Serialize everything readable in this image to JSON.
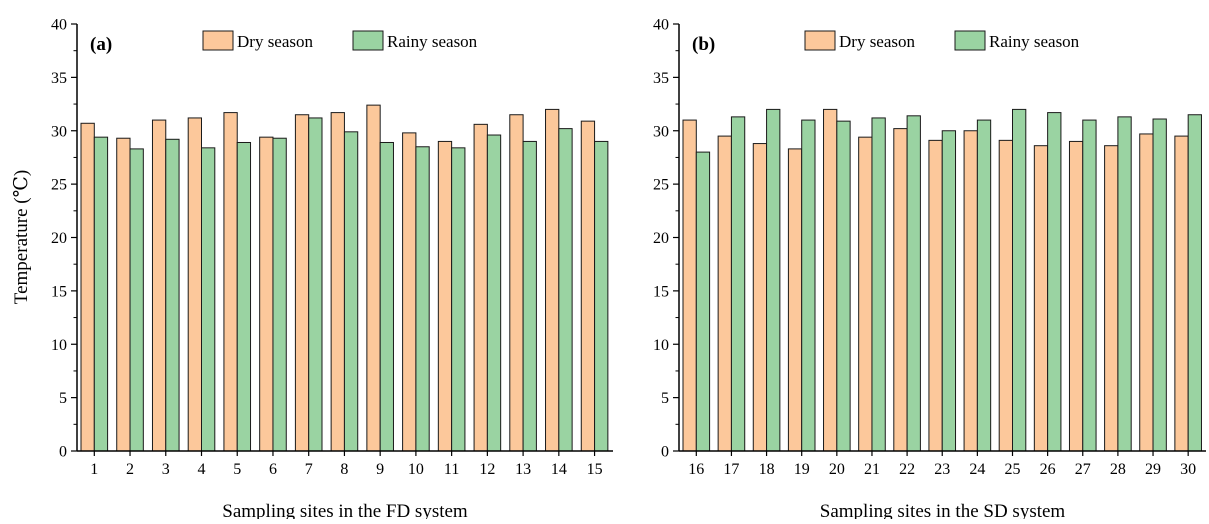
{
  "figure": {
    "y_axis_title": "Temperature (℃)"
  },
  "legend": {
    "dry_label": "Dry season",
    "rainy_label": "Rainy season"
  },
  "colors": {
    "dry": "#fcc89b",
    "rainy": "#9ad3a2",
    "edge": "#1a1a1a",
    "axis": "#000000"
  },
  "chart_data": [
    {
      "type": "bar",
      "panel_label": "(a)",
      "xlabel": "Sampling sites in the FD system",
      "ylabel": "Temperature (℃)",
      "categories": [
        "1",
        "2",
        "3",
        "4",
        "5",
        "6",
        "7",
        "8",
        "9",
        "10",
        "11",
        "12",
        "13",
        "14",
        "15"
      ],
      "series": [
        {
          "name": "Dry season",
          "values": [
            30.7,
            29.3,
            31.0,
            31.2,
            31.7,
            29.4,
            31.5,
            31.7,
            32.4,
            29.8,
            29.0,
            30.6,
            31.5,
            32.0,
            30.9
          ]
        },
        {
          "name": "Rainy season",
          "values": [
            29.4,
            28.3,
            29.2,
            28.4,
            28.9,
            29.3,
            31.2,
            29.9,
            28.9,
            28.5,
            28.4,
            29.6,
            29.0,
            30.2,
            29.0
          ]
        }
      ],
      "ylim": [
        0,
        40
      ],
      "yticks": [
        "0",
        "5",
        "10",
        "15",
        "20",
        "25",
        "30",
        "35",
        "40"
      ],
      "legend_position": "top",
      "grid": false
    },
    {
      "type": "bar",
      "panel_label": "(b)",
      "xlabel": "Sampling sites in the SD system",
      "ylabel": "",
      "categories": [
        "16",
        "17",
        "18",
        "19",
        "20",
        "21",
        "22",
        "23",
        "24",
        "25",
        "26",
        "27",
        "28",
        "29",
        "30"
      ],
      "series": [
        {
          "name": "Dry season",
          "values": [
            31.0,
            29.5,
            28.8,
            28.3,
            32.0,
            29.4,
            30.2,
            29.1,
            30.0,
            29.1,
            28.6,
            29.0,
            28.6,
            29.7,
            29.5
          ]
        },
        {
          "name": "Rainy season",
          "values": [
            28.0,
            31.3,
            32.0,
            31.0,
            30.9,
            31.2,
            31.4,
            30.0,
            31.0,
            32.0,
            31.7,
            31.0,
            31.3,
            31.1,
            31.5
          ]
        }
      ],
      "ylim": [
        0,
        40
      ],
      "yticks": [
        "0",
        "5",
        "10",
        "15",
        "20",
        "25",
        "30",
        "35",
        "40"
      ],
      "legend_position": "top",
      "grid": false
    }
  ]
}
